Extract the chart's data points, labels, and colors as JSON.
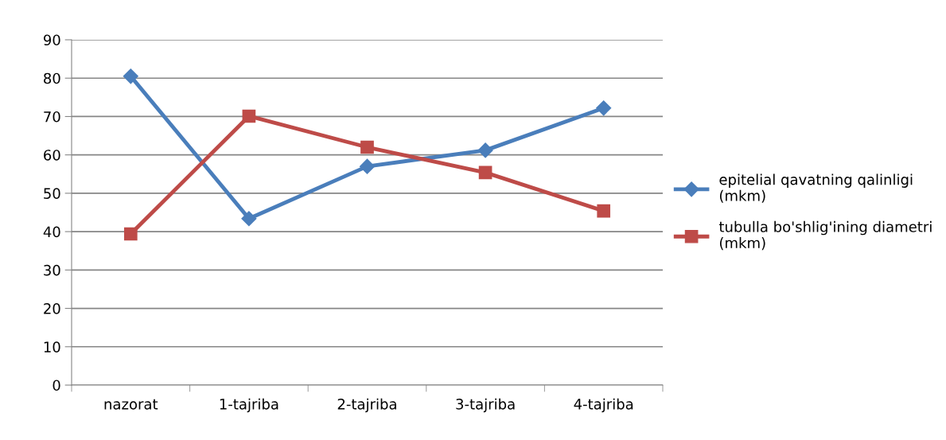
{
  "chart_data": {
    "type": "line",
    "categories": [
      "nazorat",
      "1-tajriba",
      "2-tajriba",
      "3-tajriba",
      "4-tajriba"
    ],
    "series": [
      {
        "name": "epitelial qavatning qalinligi (mkm)",
        "color": "#4a7ebb",
        "marker": "diamond",
        "values": [
          80.5,
          43.4,
          57,
          61.2,
          72.2
        ]
      },
      {
        "name": "tubulla bo'shlig'ining diametri (mkm)",
        "color": "#be4b48",
        "marker": "square",
        "values": [
          39.4,
          70.1,
          62,
          55.4,
          45.4
        ]
      }
    ],
    "ylim": [
      0,
      90
    ],
    "yticks": [
      0,
      10,
      20,
      30,
      40,
      50,
      60,
      70,
      80,
      90
    ],
    "grid": "y",
    "legend": "right",
    "line_style": "solid"
  }
}
